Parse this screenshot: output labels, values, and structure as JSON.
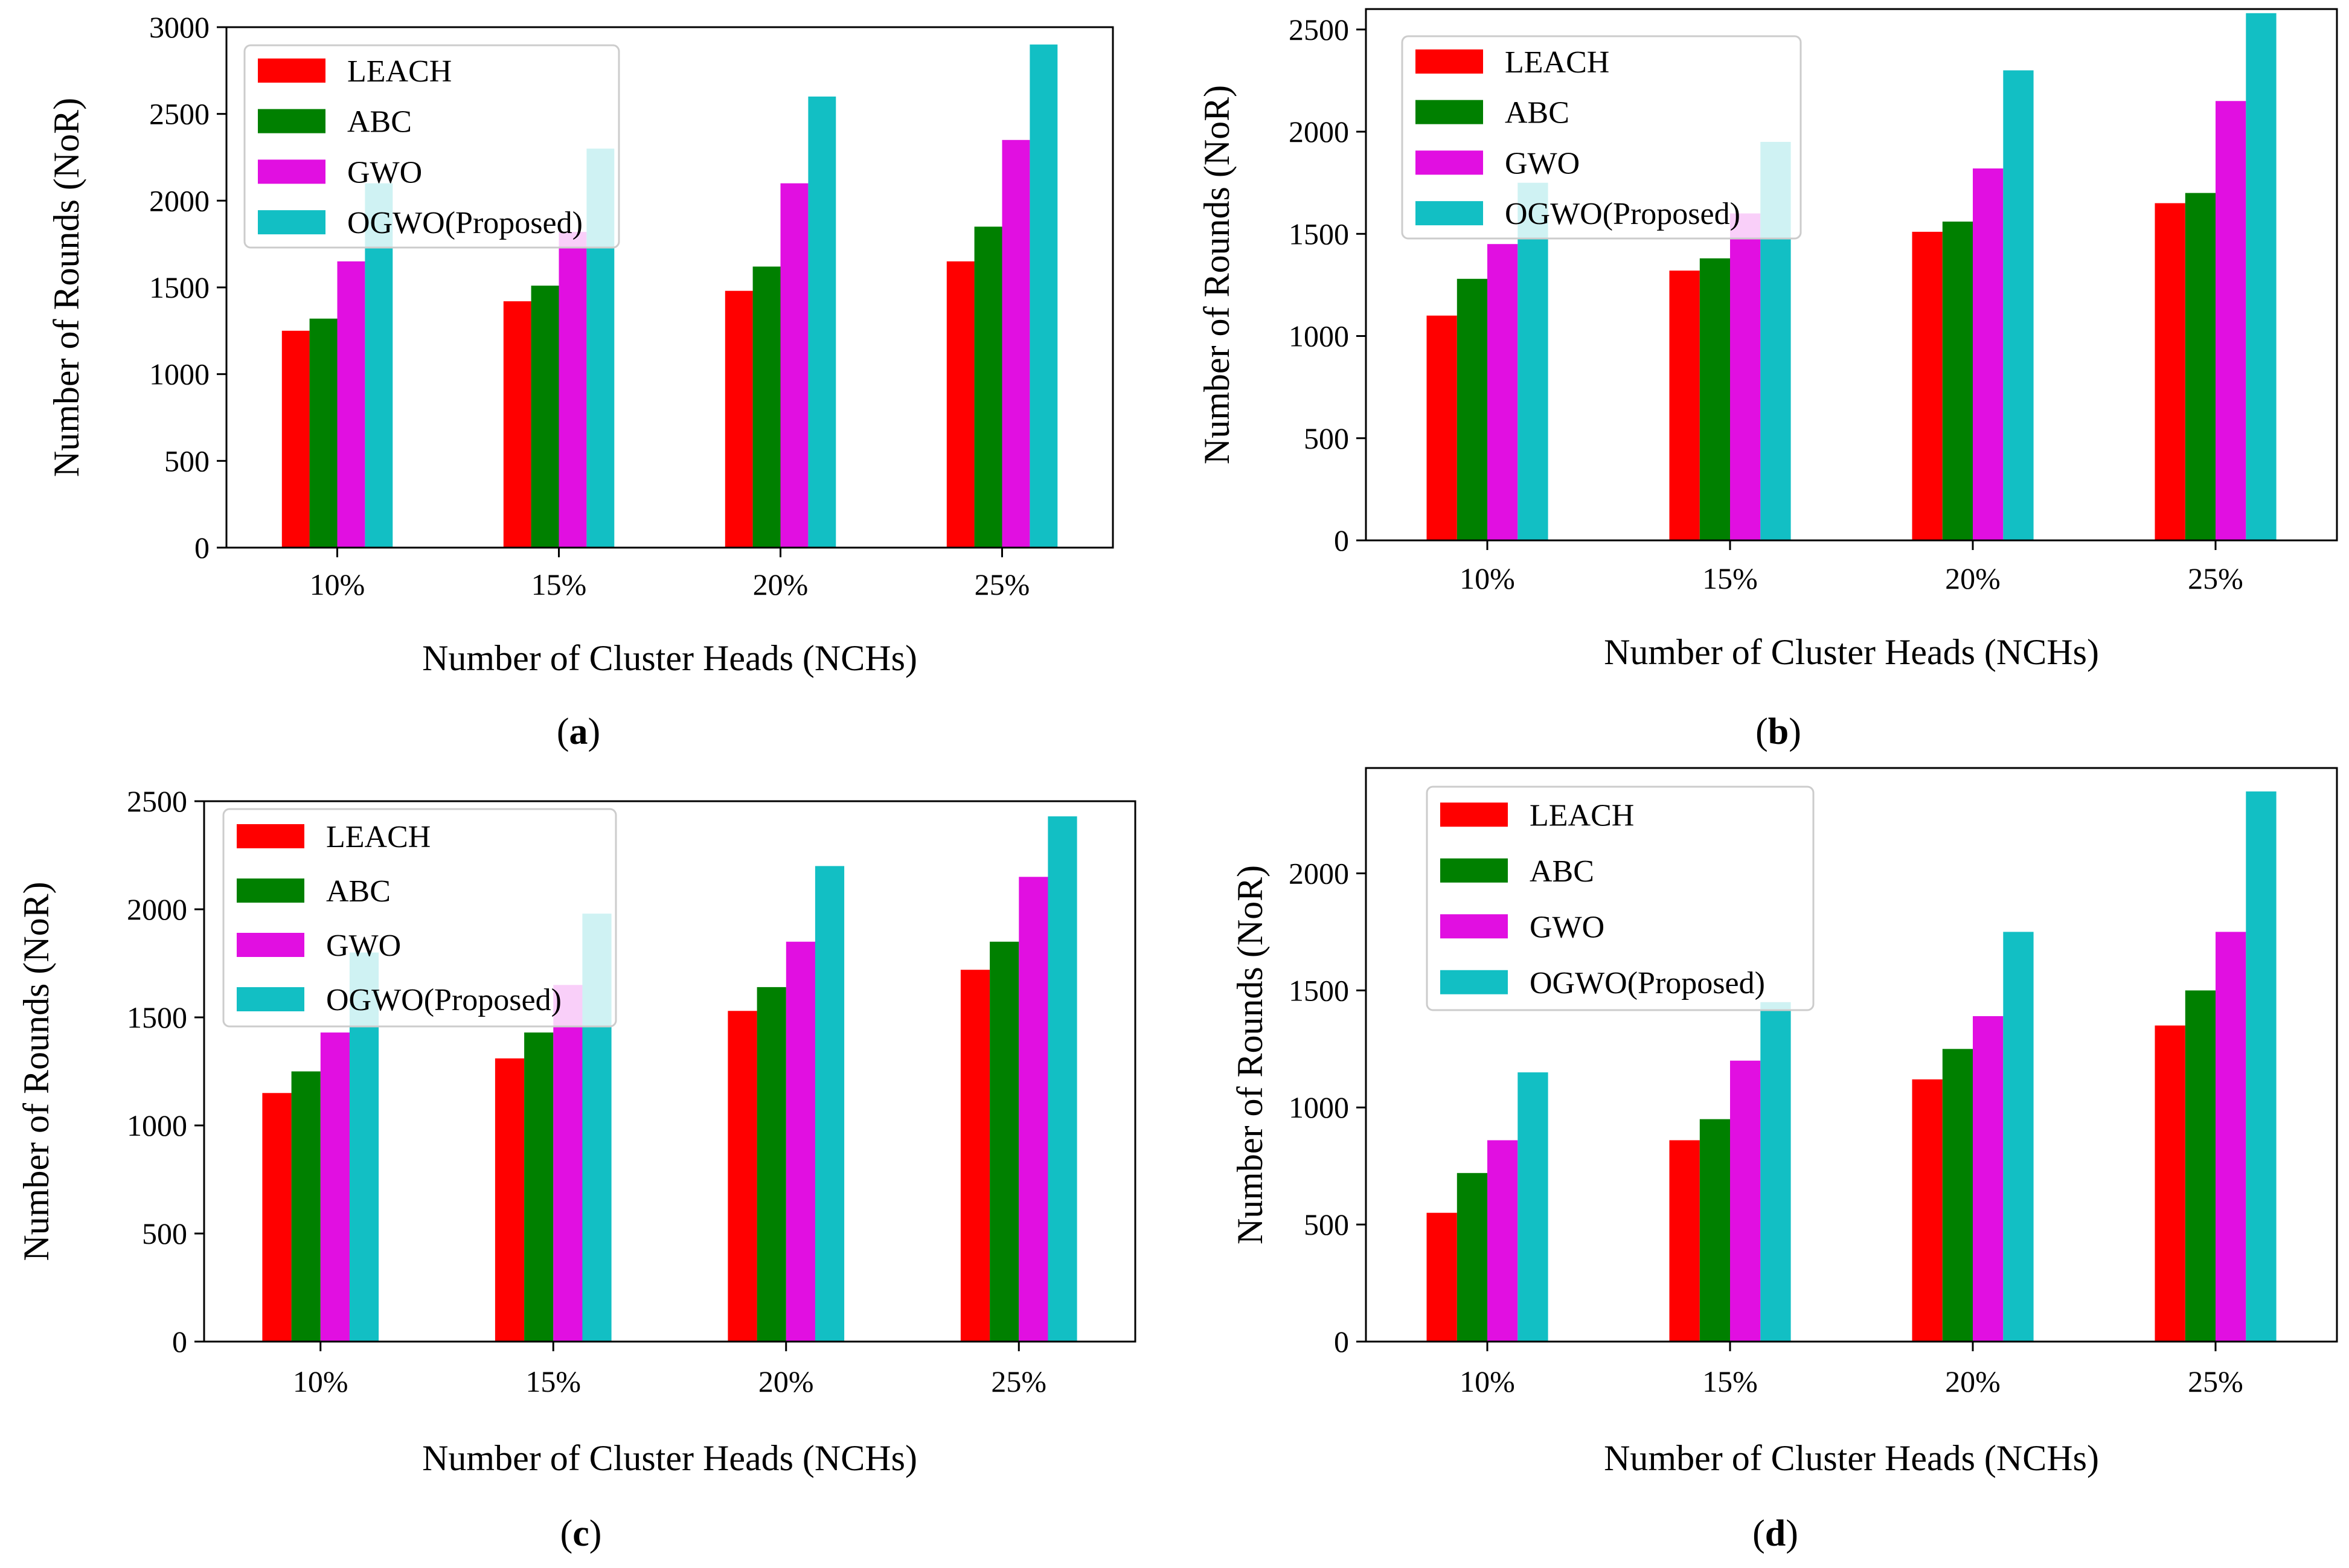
{
  "figure": {
    "legend_placement": "top-left",
    "series_colors": {
      "LEACH": "#ff0000",
      "ABC": "#008000",
      "GWO": "#e10fe1",
      "OGWO(Proposed)": "#12bfc4"
    }
  },
  "chart_data": [
    {
      "panel": "a",
      "type": "bar",
      "xlabel": "Number of Cluster Heads (NCHs)",
      "ylabel": "Number of Rounds (NoR)",
      "categories": [
        "10%",
        "15%",
        "20%",
        "25%"
      ],
      "ylim": [
        0,
        3000
      ],
      "yticks": [
        0,
        500,
        1000,
        1500,
        2000,
        2500,
        3000
      ],
      "legend": "top-left",
      "series": [
        {
          "name": "LEACH",
          "values": [
            1250,
            1420,
            1480,
            1650
          ]
        },
        {
          "name": "ABC",
          "values": [
            1320,
            1510,
            1620,
            1850
          ]
        },
        {
          "name": "GWO",
          "values": [
            1650,
            1820,
            2100,
            2350
          ]
        },
        {
          "name": "OGWO(Proposed)",
          "values": [
            2100,
            2300,
            2600,
            2900
          ]
        }
      ]
    },
    {
      "panel": "b",
      "type": "bar",
      "xlabel": "Number of Cluster Heads (NCHs)",
      "ylabel": "Number of Rounds (NoR)",
      "categories": [
        "10%",
        "15%",
        "20%",
        "25%"
      ],
      "ylim": [
        0,
        2600
      ],
      "yticks": [
        0,
        500,
        1000,
        1500,
        2000,
        2500
      ],
      "legend": "top-left",
      "series": [
        {
          "name": "LEACH",
          "values": [
            1100,
            1320,
            1510,
            1650
          ]
        },
        {
          "name": "ABC",
          "values": [
            1280,
            1380,
            1560,
            1700
          ]
        },
        {
          "name": "GWO",
          "values": [
            1450,
            1600,
            1820,
            2150
          ]
        },
        {
          "name": "OGWO(Proposed)",
          "values": [
            1750,
            1950,
            2300,
            2580
          ]
        }
      ]
    },
    {
      "panel": "c",
      "type": "bar",
      "xlabel": "Number of Cluster Heads (NCHs)",
      "ylabel": "Number of Rounds (NoR)",
      "categories": [
        "10%",
        "15%",
        "20%",
        "25%"
      ],
      "ylim": [
        0,
        2500
      ],
      "yticks": [
        0,
        500,
        1000,
        1500,
        2000,
        2500
      ],
      "legend": "top-left",
      "series": [
        {
          "name": "LEACH",
          "values": [
            1150,
            1310,
            1530,
            1720
          ]
        },
        {
          "name": "ABC",
          "values": [
            1250,
            1430,
            1640,
            1850
          ]
        },
        {
          "name": "GWO",
          "values": [
            1430,
            1650,
            1850,
            2150
          ]
        },
        {
          "name": "OGWO(Proposed)",
          "values": [
            1800,
            1980,
            2200,
            2430
          ]
        }
      ]
    },
    {
      "panel": "d",
      "type": "bar",
      "xlabel": "Number of Cluster Heads (NCHs)",
      "ylabel": "Number of Rounds (NoR)",
      "categories": [
        "10%",
        "15%",
        "20%",
        "25%"
      ],
      "ylim": [
        0,
        2450
      ],
      "yticks": [
        0,
        500,
        1000,
        1500,
        2000
      ],
      "legend": "top-left",
      "series": [
        {
          "name": "LEACH",
          "values": [
            550,
            860,
            1120,
            1350
          ]
        },
        {
          "name": "ABC",
          "values": [
            720,
            950,
            1250,
            1500
          ]
        },
        {
          "name": "GWO",
          "values": [
            860,
            1200,
            1390,
            1750
          ]
        },
        {
          "name": "OGWO(Proposed)",
          "values": [
            1150,
            1450,
            1750,
            2350
          ]
        }
      ]
    }
  ],
  "captions": [
    {
      "open": "(",
      "letter": "a",
      "close": ")"
    },
    {
      "open": "(",
      "letter": "b",
      "close": ")"
    },
    {
      "open": "(",
      "letter": "c",
      "close": ")"
    },
    {
      "open": "(",
      "letter": "d",
      "close": ")"
    }
  ]
}
